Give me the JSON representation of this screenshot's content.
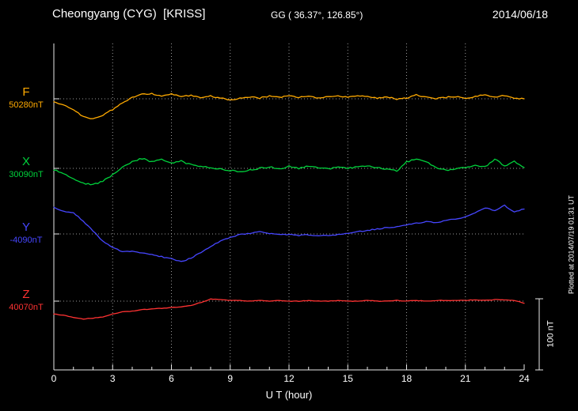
{
  "header": {
    "station": "Cheongyang (CYG)  [KRISS]",
    "coords": "GG ( 36.37°, 126.85°)",
    "date": "2014/06/18"
  },
  "axis": {
    "x_label": "U T (hour)",
    "x_ticks": [
      "0",
      "3",
      "6",
      "9",
      "12",
      "15",
      "18",
      "21",
      "24"
    ],
    "grid_hours": [
      3,
      6,
      9,
      12,
      15,
      18,
      21
    ]
  },
  "scale_bar": {
    "label": "100 nT",
    "nT": 100
  },
  "footer_note": "Plotted at 2014/07/19 01:31 UT",
  "chart_data": {
    "type": "line",
    "title": "Cheongyang (CYG) [KRISS] magnetogram 2014/06/18",
    "xlabel": "U T (hour)",
    "x_range": [
      0,
      24
    ],
    "x_step_hours": 0.5,
    "scale_nT_per_div": 100,
    "grid": true,
    "legend_position": "left",
    "series": [
      {
        "name": "F",
        "baseline_label": "50280nT",
        "baseline_nT": 50280,
        "color": "#ffaa00",
        "offsets_nT": [
          -5,
          -8,
          -16,
          -25,
          -28,
          -23,
          -15,
          -6,
          2,
          6,
          7,
          4,
          7,
          3,
          5,
          2,
          4,
          1,
          -2,
          1,
          3,
          1,
          4,
          2,
          4,
          2,
          4,
          1,
          3,
          4,
          2,
          4,
          3,
          1,
          3,
          -1,
          1,
          6,
          2,
          0,
          2,
          3,
          1,
          3,
          6,
          2,
          5,
          1,
          0
        ]
      },
      {
        "name": "X",
        "baseline_label": "30090nT",
        "baseline_nT": 30090,
        "color": "#00d23c",
        "offsets_nT": [
          -2,
          -7,
          -14,
          -21,
          -23,
          -18,
          -9,
          1,
          9,
          14,
          9,
          13,
          7,
          10,
          5,
          3,
          1,
          -1,
          -3,
          -5,
          -2,
          0,
          2,
          -1,
          3,
          0,
          3,
          1,
          -1,
          2,
          0,
          2,
          4,
          1,
          -1,
          -4,
          9,
          13,
          9,
          1,
          -3,
          -1,
          1,
          4,
          2,
          13,
          3,
          10,
          1
        ]
      },
      {
        "name": "Y",
        "baseline_label": "-4090nT",
        "baseline_nT": -4090,
        "color": "#4646ff",
        "offsets_nT": [
          37,
          32,
          30,
          18,
          4,
          -10,
          -19,
          -25,
          -24,
          -27,
          -29,
          -32,
          -35,
          -39,
          -34,
          -26,
          -18,
          -10,
          -5,
          -1,
          1,
          3,
          1,
          -1,
          -1,
          -2,
          -1,
          -3,
          -2,
          -1,
          1,
          3,
          5,
          7,
          9,
          10,
          13,
          15,
          17,
          16,
          19,
          21,
          24,
          30,
          37,
          33,
          40,
          31,
          35
        ]
      },
      {
        "name": "Z",
        "baseline_label": "40070nT",
        "baseline_nT": 40070,
        "color": "#ff3232",
        "offsets_nT": [
          -18,
          -20,
          -23,
          -25,
          -24,
          -22,
          -18,
          -15,
          -14,
          -12,
          -11,
          -10,
          -9,
          -8,
          -6,
          -2,
          3,
          2,
          1,
          1,
          0,
          1,
          0,
          1,
          0,
          0,
          1,
          0,
          0,
          1,
          0,
          0,
          1,
          0,
          0,
          1,
          0,
          1,
          0,
          1,
          1,
          1,
          1,
          2,
          1,
          2,
          2,
          1,
          -3
        ]
      }
    ]
  }
}
